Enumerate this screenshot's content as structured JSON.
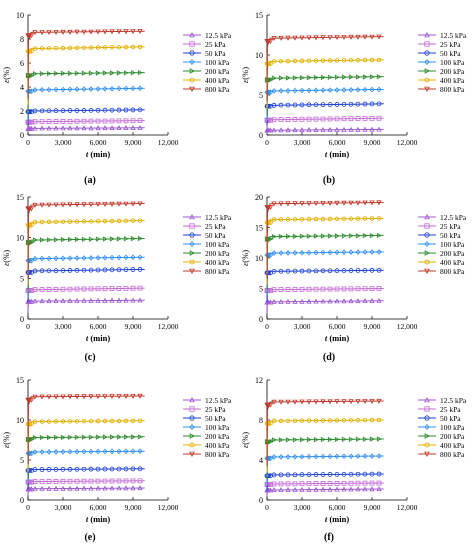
{
  "figure": {
    "legend_series": [
      "12.5 kPa",
      "25 kPa",
      "50 kPa",
      "100 kPa",
      "200 kPa",
      "400 kPa",
      "800 kPa"
    ],
    "series_colors": [
      "#9b59d0",
      "#c46ad6",
      "#1b3fd6",
      "#2e8ff0",
      "#2e8b2e",
      "#e0b000",
      "#c0392b"
    ],
    "markers": [
      "triangle-up",
      "square",
      "circle",
      "diamond",
      "triangle-right",
      "hexagon",
      "triangle-down"
    ]
  },
  "chart_data": [
    {
      "type": "line",
      "panel_label": "(a)",
      "xlabel_var": "t",
      "xlabel_unit": " (min)",
      "ylabel_var": "ε",
      "ylabel_unit": "(%)",
      "xlim": [
        0,
        12000
      ],
      "ylim": [
        0,
        10
      ],
      "xticks": [
        0,
        3000,
        6000,
        9000,
        12000
      ],
      "xtick_labels": [
        "0",
        "3,000",
        "6,000",
        "9,000",
        "12,000"
      ],
      "yticks": [
        0,
        2,
        4,
        6,
        8,
        10
      ],
      "ytick_labels": [
        "0",
        "2",
        "4",
        "6",
        "8",
        "10"
      ],
      "legend_position": "right",
      "series": [
        {
          "name": "12.5 kPa",
          "x": [
            0,
            10000
          ],
          "values": [
            0.55,
            0.6
          ]
        },
        {
          "name": "25 kPa",
          "x": [
            0,
            10000
          ],
          "values": [
            1.1,
            1.2
          ]
        },
        {
          "name": "50 kPa",
          "x": [
            0,
            10000
          ],
          "values": [
            2.0,
            2.1
          ]
        },
        {
          "name": "100 kPa",
          "x": [
            0,
            10000
          ],
          "values": [
            3.75,
            3.9
          ]
        },
        {
          "name": "200 kPa",
          "x": [
            0,
            10000
          ],
          "values": [
            5.1,
            5.2
          ]
        },
        {
          "name": "400 kPa",
          "x": [
            0,
            10000
          ],
          "values": [
            7.2,
            7.35
          ]
        },
        {
          "name": "800 kPa",
          "x": [
            0,
            10000
          ],
          "values": [
            8.55,
            8.65
          ]
        }
      ]
    },
    {
      "type": "line",
      "panel_label": "(b)",
      "xlabel_var": "t",
      "xlabel_unit": " (min)",
      "ylabel_var": "ε",
      "ylabel_unit": "(%)",
      "xlim": [
        0,
        12000
      ],
      "ylim": [
        0,
        15
      ],
      "xticks": [
        0,
        3000,
        6000,
        9000,
        12000
      ],
      "xtick_labels": [
        "0",
        "3,000",
        "6,000",
        "9,000",
        "12,000"
      ],
      "yticks": [
        0,
        5,
        10,
        15
      ],
      "ytick_labels": [
        "0",
        "5",
        "10",
        "15"
      ],
      "legend_position": "right",
      "series": [
        {
          "name": "12.5 kPa",
          "x": [
            0,
            10000
          ],
          "values": [
            0.6,
            0.7
          ]
        },
        {
          "name": "25 kPa",
          "x": [
            0,
            10000
          ],
          "values": [
            1.9,
            2.1
          ]
        },
        {
          "name": "50 kPa",
          "x": [
            0,
            10000
          ],
          "values": [
            3.7,
            3.9
          ]
        },
        {
          "name": "100 kPa",
          "x": [
            0,
            10000
          ],
          "values": [
            5.5,
            5.7
          ]
        },
        {
          "name": "200 kPa",
          "x": [
            0,
            10000
          ],
          "values": [
            7.1,
            7.3
          ]
        },
        {
          "name": "400 kPa",
          "x": [
            0,
            10000
          ],
          "values": [
            9.2,
            9.4
          ]
        },
        {
          "name": "800 kPa",
          "x": [
            0,
            10000
          ],
          "values": [
            12.1,
            12.3
          ]
        }
      ]
    },
    {
      "type": "line",
      "panel_label": "(c)",
      "xlabel_var": "t",
      "xlabel_unit": " (min)",
      "ylabel_var": "ε",
      "ylabel_unit": "(%)",
      "xlim": [
        0,
        12000
      ],
      "ylim": [
        0,
        15
      ],
      "xticks": [
        0,
        3000,
        6000,
        9000,
        12000
      ],
      "xtick_labels": [
        "0",
        "3,000",
        "6,000",
        "9,000",
        "12,000"
      ],
      "yticks": [
        0,
        5,
        10,
        15
      ],
      "ytick_labels": [
        "0",
        "5",
        "10",
        "15"
      ],
      "legend_position": "right",
      "series": [
        {
          "name": "12.5 kPa",
          "x": [
            0,
            10000
          ],
          "values": [
            2.2,
            2.3
          ]
        },
        {
          "name": "25 kPa",
          "x": [
            0,
            10000
          ],
          "values": [
            3.6,
            3.8
          ]
        },
        {
          "name": "50 kPa",
          "x": [
            0,
            10000
          ],
          "values": [
            5.9,
            6.1
          ]
        },
        {
          "name": "100 kPa",
          "x": [
            0,
            10000
          ],
          "values": [
            7.4,
            7.6
          ]
        },
        {
          "name": "200 kPa",
          "x": [
            0,
            10000
          ],
          "values": [
            9.7,
            9.9
          ]
        },
        {
          "name": "400 kPa",
          "x": [
            0,
            10000
          ],
          "values": [
            11.9,
            12.1
          ]
        },
        {
          "name": "800 kPa",
          "x": [
            0,
            10000
          ],
          "values": [
            14.0,
            14.2
          ]
        }
      ]
    },
    {
      "type": "line",
      "panel_label": "(d)",
      "xlabel_var": "t",
      "xlabel_unit": " (min)",
      "ylabel_var": "ε",
      "ylabel_unit": "(%)",
      "xlim": [
        0,
        12000
      ],
      "ylim": [
        0,
        20
      ],
      "xticks": [
        0,
        3000,
        6000,
        9000,
        12000
      ],
      "xtick_labels": [
        "0",
        "3,000",
        "6,000",
        "9,000",
        "12,000"
      ],
      "yticks": [
        0,
        5,
        10,
        15,
        20
      ],
      "ytick_labels": [
        "0",
        "5",
        "10",
        "15",
        "20"
      ],
      "legend_position": "right",
      "series": [
        {
          "name": "12.5 kPa",
          "x": [
            0,
            10000
          ],
          "values": [
            2.8,
            3.0
          ]
        },
        {
          "name": "25 kPa",
          "x": [
            0,
            10000
          ],
          "values": [
            4.8,
            5.0
          ]
        },
        {
          "name": "50 kPa",
          "x": [
            0,
            10000
          ],
          "values": [
            7.8,
            8.0
          ]
        },
        {
          "name": "100 kPa",
          "x": [
            0,
            10000
          ],
          "values": [
            10.8,
            11.0
          ]
        },
        {
          "name": "200 kPa",
          "x": [
            0,
            10000
          ],
          "values": [
            13.5,
            13.7
          ]
        },
        {
          "name": "400 kPa",
          "x": [
            0,
            10000
          ],
          "values": [
            16.3,
            16.5
          ]
        },
        {
          "name": "800 kPa",
          "x": [
            0,
            10000
          ],
          "values": [
            18.9,
            19.1
          ]
        }
      ]
    },
    {
      "type": "line",
      "panel_label": "(e)",
      "xlabel_var": "t",
      "xlabel_unit": " (min)",
      "ylabel_var": "ε",
      "ylabel_unit": "(%)",
      "xlim": [
        0,
        12000
      ],
      "ylim": [
        0,
        15
      ],
      "xticks": [
        0,
        3000,
        6000,
        9000,
        12000
      ],
      "xtick_labels": [
        "0",
        "3,000",
        "6,000",
        "9,000",
        "12,000"
      ],
      "yticks": [
        0,
        5,
        10,
        15
      ],
      "ytick_labels": [
        "0",
        "5",
        "10",
        "15"
      ],
      "legend_position": "right",
      "series": [
        {
          "name": "12.5 kPa",
          "x": [
            0,
            10000
          ],
          "values": [
            1.4,
            1.5
          ]
        },
        {
          "name": "25 kPa",
          "x": [
            0,
            10000
          ],
          "values": [
            2.3,
            2.4
          ]
        },
        {
          "name": "50 kPa",
          "x": [
            0,
            10000
          ],
          "values": [
            3.8,
            3.9
          ]
        },
        {
          "name": "100 kPa",
          "x": [
            0,
            10000
          ],
          "values": [
            6.0,
            6.1
          ]
        },
        {
          "name": "200 kPa",
          "x": [
            0,
            10000
          ],
          "values": [
            7.8,
            7.9
          ]
        },
        {
          "name": "400 kPa",
          "x": [
            0,
            10000
          ],
          "values": [
            9.8,
            9.9
          ]
        },
        {
          "name": "800 kPa",
          "x": [
            0,
            10000
          ],
          "values": [
            12.9,
            13.0
          ]
        }
      ]
    },
    {
      "type": "line",
      "panel_label": "(f)",
      "xlabel_var": "t",
      "xlabel_unit": " (min)",
      "ylabel_var": "ε",
      "ylabel_unit": "(%)",
      "xlim": [
        0,
        12000
      ],
      "ylim": [
        0,
        12
      ],
      "xticks": [
        0,
        3000,
        6000,
        9000,
        12000
      ],
      "xtick_labels": [
        "0",
        "3,000",
        "6,000",
        "9,000",
        "12,000"
      ],
      "yticks": [
        0,
        4,
        8,
        12
      ],
      "ytick_labels": [
        "0",
        "4",
        "8",
        "12"
      ],
      "legend_position": "right",
      "series": [
        {
          "name": "12.5 kPa",
          "x": [
            0,
            10000
          ],
          "values": [
            1.0,
            1.1
          ]
        },
        {
          "name": "25 kPa",
          "x": [
            0,
            10000
          ],
          "values": [
            1.6,
            1.7
          ]
        },
        {
          "name": "50 kPa",
          "x": [
            0,
            10000
          ],
          "values": [
            2.5,
            2.6
          ]
        },
        {
          "name": "100 kPa",
          "x": [
            0,
            10000
          ],
          "values": [
            4.3,
            4.4
          ]
        },
        {
          "name": "200 kPa",
          "x": [
            0,
            10000
          ],
          "values": [
            6.0,
            6.1
          ]
        },
        {
          "name": "400 kPa",
          "x": [
            0,
            10000
          ],
          "values": [
            7.9,
            8.0
          ]
        },
        {
          "name": "800 kPa",
          "x": [
            0,
            10000
          ],
          "values": [
            9.8,
            9.9
          ]
        }
      ]
    }
  ]
}
